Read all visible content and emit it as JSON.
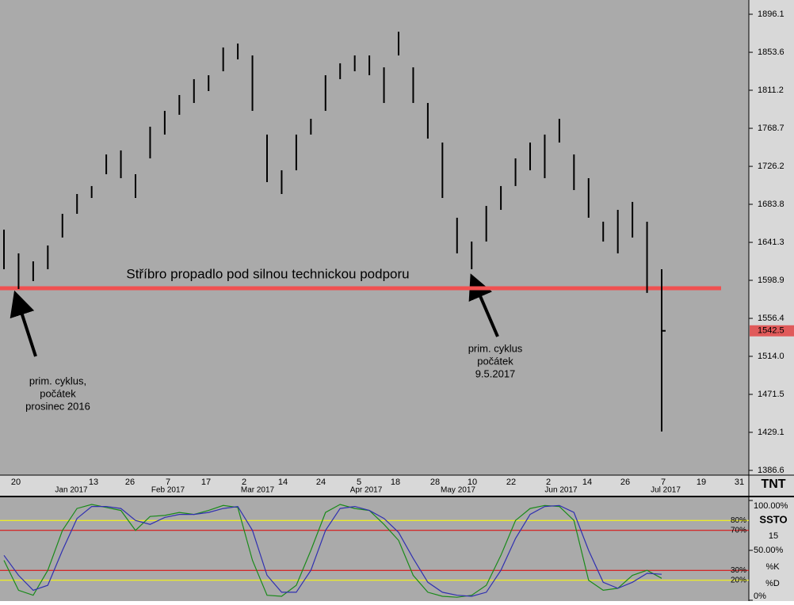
{
  "chart_data": [
    {
      "type": "ohlc",
      "series": [
        {
          "name": "Silver",
          "color": "#000000",
          "high": [
            1655.5,
            1629.0,
            1620.1,
            1637.8,
            1673.2,
            1695.3,
            1704.2,
            1739.5,
            1744.0,
            1717.4,
            1770.5,
            1788.2,
            1805.9,
            1823.6,
            1828.0,
            1859.0,
            1863.4,
            1850.1,
            1761.7,
            1721.8,
            1761.7,
            1779.3,
            1828.0,
            1841.3,
            1850.1,
            1850.1,
            1836.8,
            1876.6,
            1836.8,
            1797.0,
            1752.8,
            1668.8,
            1642.2,
            1682.0,
            1704.2,
            1735.1,
            1752.8,
            1761.7,
            1779.3,
            1739.5,
            1713.0,
            1664.4,
            1677.6,
            1686.5,
            1664.4,
            1611.3
          ],
          "low": [
            1611.3,
            1589.2,
            1598.0,
            1611.3,
            1646.7,
            1673.2,
            1690.9,
            1717.4,
            1713.0,
            1690.9,
            1735.1,
            1761.7,
            1783.8,
            1797.0,
            1810.3,
            1832.4,
            1845.7,
            1788.2,
            1708.6,
            1695.3,
            1721.8,
            1761.7,
            1788.2,
            1823.6,
            1832.4,
            1828.0,
            1797.0,
            1850.1,
            1797.0,
            1757.2,
            1690.9,
            1629.0,
            1611.3,
            1642.2,
            1677.6,
            1704.2,
            1721.8,
            1713.0,
            1752.8,
            1699.7,
            1668.8,
            1642.2,
            1629.0,
            1646.7,
            1584.8,
            1430.0
          ]
        }
      ],
      "ylim": [
        1386.6,
        1896.1
      ],
      "yticks": [
        1896.1,
        1853.6,
        1811.2,
        1768.7,
        1726.2,
        1683.8,
        1641.3,
        1598.9,
        1556.4,
        {
          "value": 1514.0,
          "label": "1514.0"
        },
        1471.5,
        1429.1,
        1386.6
      ],
      "last_price": {
        "value": 1542.5,
        "color": "#e05a5a"
      },
      "support": {
        "value": 1590.1,
        "color": "#f05050"
      },
      "date_ticks": [
        "20",
        "13",
        "26",
        "7",
        "17",
        "2",
        "14",
        "24",
        "5",
        "18",
        "28",
        "10",
        "22",
        "2",
        "14",
        "26",
        "7",
        "19",
        "31"
      ],
      "month_labels": [
        "Jan 2017",
        "Feb 2017",
        "Mar 2017",
        "Apr 2017",
        "May 2017",
        "Jun 2017",
        "Jul 2017"
      ],
      "headline": "Stříbro propadlo pod silnou technickou podporu",
      "annotations": [
        {
          "lines": [
            "prim. cyklus,",
            "počátek",
            "prosinec 2016"
          ]
        },
        {
          "lines": [
            "prim. cyklus",
            "počátek",
            "9.5.2017"
          ]
        }
      ],
      "logo": "TNT"
    },
    {
      "type": "line",
      "title": "SSTO",
      "period": 15,
      "ylim": [
        0,
        100
      ],
      "yticks": [
        {
          "value": 100,
          "label": "100.00%"
        },
        {
          "value": 50,
          "label": "50.00%"
        },
        {
          "value": 0,
          "label": "0%"
        }
      ],
      "levels": [
        {
          "value": 80,
          "label": "80%",
          "color": "#ffff00"
        },
        {
          "value": 70,
          "label": "70%",
          "color": "#e00000"
        },
        {
          "value": 30,
          "label": "30%",
          "color": "#e00000"
        },
        {
          "value": 20,
          "label": "20%",
          "color": "#ffff00"
        }
      ],
      "series": [
        {
          "name": "%K",
          "color": "#1a8a1a",
          "values": [
            40,
            10,
            5,
            30,
            70,
            92,
            96,
            93,
            90,
            70,
            84,
            85,
            88,
            86,
            90,
            95,
            93,
            40,
            5,
            4,
            15,
            50,
            88,
            96,
            92,
            90,
            76,
            60,
            25,
            8,
            4,
            3,
            5,
            15,
            45,
            80,
            92,
            95,
            94,
            80,
            20,
            10,
            12,
            25,
            30,
            22
          ]
        },
        {
          "name": "%D",
          "color": "#3030b0",
          "values": [
            45,
            25,
            10,
            15,
            50,
            82,
            94,
            94,
            92,
            80,
            76,
            83,
            86,
            86,
            88,
            92,
            94,
            70,
            25,
            8,
            8,
            30,
            70,
            92,
            94,
            90,
            82,
            68,
            42,
            18,
            8,
            5,
            4,
            8,
            30,
            62,
            86,
            94,
            95,
            88,
            50,
            18,
            12,
            18,
            27,
            26
          ]
        }
      ]
    }
  ]
}
